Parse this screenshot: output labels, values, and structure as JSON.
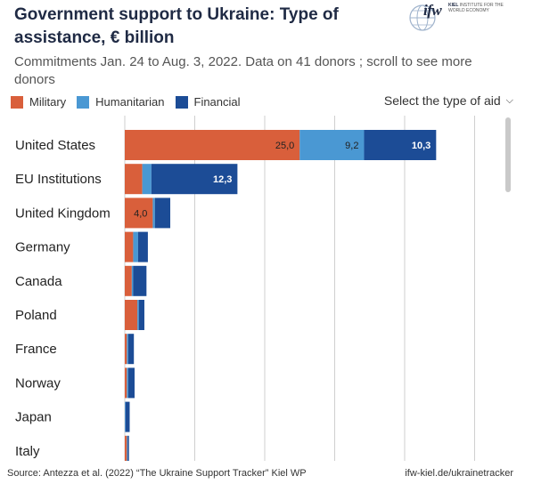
{
  "header": {
    "title": "Government support to Ukraine: Type of assistance, € billion",
    "subtitle": "Commitments Jan. 24 to Aug. 3, 2022. Data on 41 donors ; scroll to see more donors",
    "logo_text": "ifw",
    "logo_sub_bold": "KIEL",
    "logo_sub": "INSTITUTE FOR THE WORLD ECONOMY"
  },
  "legend": {
    "items": [
      {
        "label": "Military",
        "color": "#d95f3b"
      },
      {
        "label": "Humanitarian",
        "color": "#4a98d3"
      },
      {
        "label": "Financial",
        "color": "#1c4c96"
      }
    ]
  },
  "selector": {
    "label": "Select the type of aid",
    "icon": "chevron-down-icon"
  },
  "footer": {
    "source": "Source: Antezza et al. (2022) “The Ukraine Support Tracker” Kiel WP",
    "link": "ifw-kiel.de/ukrainetracker"
  },
  "chart_data": {
    "type": "bar",
    "orientation": "horizontal",
    "stacked": true,
    "categories": [
      "United States",
      "EU Institutions",
      "United Kingdom",
      "Germany",
      "Canada",
      "Poland",
      "France",
      "Norway",
      "Japan",
      "Italy"
    ],
    "series": [
      {
        "name": "Military",
        "color": "#d95f3b",
        "values": [
          25.0,
          2.5,
          4.0,
          1.2,
          1.0,
          1.8,
          0.3,
          0.3,
          0.0,
          0.3
        ]
      },
      {
        "name": "Humanitarian",
        "color": "#4a98d3",
        "values": [
          9.2,
          1.3,
          0.3,
          0.7,
          0.2,
          0.2,
          0.2,
          0.2,
          0.1,
          0.1
        ]
      },
      {
        "name": "Financial",
        "color": "#1c4c96",
        "values": [
          10.3,
          12.3,
          2.2,
          1.4,
          1.9,
          0.8,
          0.8,
          0.9,
          0.6,
          0.2
        ]
      }
    ],
    "data_labels": [
      [
        "25,0",
        "9,2",
        "10,3"
      ],
      [
        "",
        "",
        "12,3"
      ],
      [
        "4,0",
        "",
        ""
      ],
      [
        "",
        "",
        ""
      ],
      [
        "",
        "",
        ""
      ],
      [
        "",
        "",
        ""
      ],
      [
        "",
        "",
        ""
      ],
      [
        "",
        "",
        ""
      ],
      [
        "",
        "",
        ""
      ],
      [
        "",
        "",
        ""
      ]
    ],
    "xlim": [
      0,
      55
    ],
    "grid": true
  }
}
